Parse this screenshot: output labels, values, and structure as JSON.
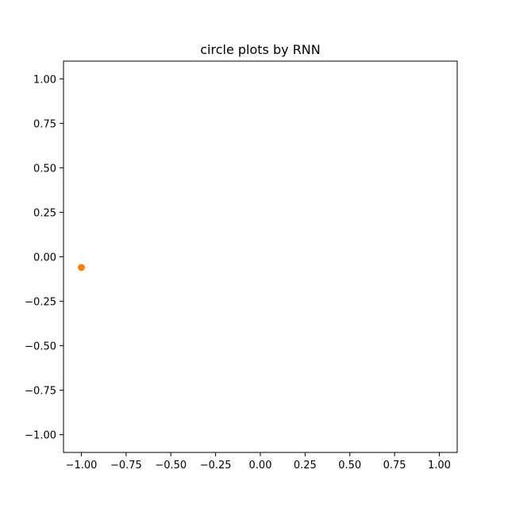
{
  "chart_data": {
    "type": "scatter",
    "title": "circle plots by RNN",
    "xlabel": "",
    "ylabel": "",
    "xlim": [
      -1.1,
      1.1
    ],
    "ylim": [
      -1.1,
      1.1
    ],
    "xticks": [
      -1.0,
      -0.75,
      -0.5,
      -0.25,
      0.0,
      0.25,
      0.5,
      0.75,
      1.0
    ],
    "yticks": [
      1.0,
      0.75,
      0.5,
      0.25,
      0.0,
      -0.25,
      -0.5,
      -0.75,
      -1.0
    ],
    "xtick_labels": [
      "−1.00",
      "−0.75",
      "−0.50",
      "−0.25",
      "0.00",
      "0.25",
      "0.50",
      "0.75",
      "1.00"
    ],
    "ytick_labels": [
      "1.00",
      "0.75",
      "0.50",
      "0.25",
      "0.00",
      "−0.25",
      "−0.50",
      "−0.75",
      "−1.00"
    ],
    "grid": false,
    "series": [
      {
        "color": "#ff7f0e",
        "points": [
          {
            "x": -1.0,
            "y": -0.06
          }
        ]
      }
    ]
  }
}
